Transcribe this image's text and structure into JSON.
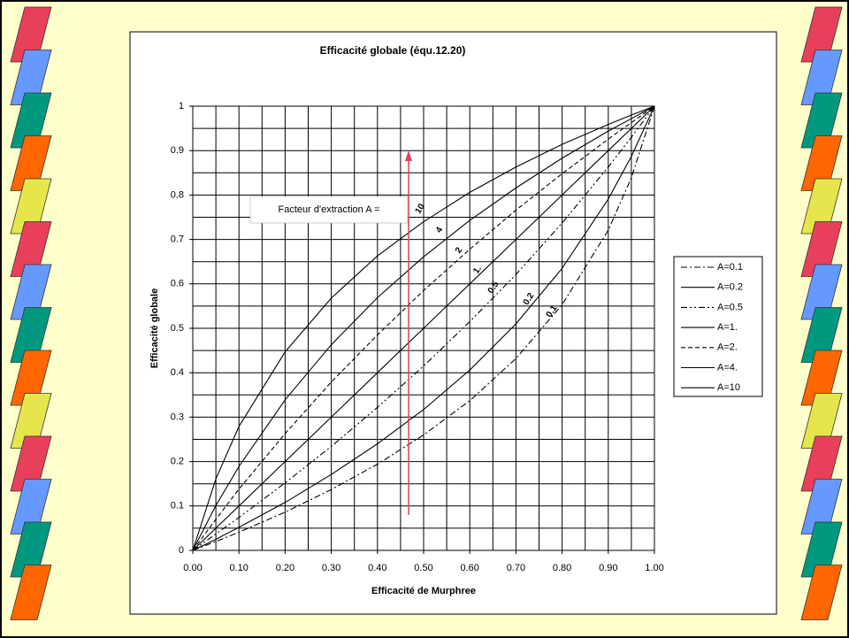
{
  "chart_data": {
    "type": "line",
    "title": "Efficacité globale (équ.12.20)",
    "x_label": "Efficacité de Murphree",
    "y_label": "Efficacité globale",
    "annotation": "Facteur d'extraction A =",
    "x": [
      0,
      0.05,
      0.1,
      0.2,
      0.3,
      0.4,
      0.5,
      0.6,
      0.7,
      0.8,
      0.9,
      0.95,
      1
    ],
    "series": [
      {
        "name": "A=0.1",
        "color": "#000000",
        "line_style": "dashdot",
        "curve_label": "0.1",
        "values": [
          0,
          0.02,
          0.041,
          0.086,
          0.137,
          0.194,
          0.26,
          0.337,
          0.432,
          0.553,
          0.721,
          0.839,
          1
        ]
      },
      {
        "name": "A=0.2",
        "color": "#000000",
        "line_style": "solid",
        "curve_label": "0.2",
        "values": [
          0,
          0.025,
          0.052,
          0.108,
          0.171,
          0.24,
          0.317,
          0.406,
          0.51,
          0.635,
          0.791,
          0.887,
          1
        ]
      },
      {
        "name": "A=0.5",
        "color": "#000000",
        "line_style": "dashdotdot",
        "curve_label": "0.5",
        "values": [
          0,
          0.037,
          0.074,
          0.152,
          0.234,
          0.322,
          0.415,
          0.515,
          0.621,
          0.737,
          0.863,
          0.93,
          1
        ]
      },
      {
        "name": "A=1.",
        "color": "#000000",
        "line_style": "solid",
        "curve_label": "1.",
        "values": [
          0,
          0.05,
          0.1,
          0.2,
          0.3,
          0.4,
          0.5,
          0.6,
          0.7,
          0.8,
          0.9,
          0.95,
          1
        ]
      },
      {
        "name": "A=2.",
        "color": "#000000",
        "line_style": "dashed",
        "curve_label": "2",
        "values": [
          0,
          0.07,
          0.138,
          0.263,
          0.379,
          0.485,
          0.585,
          0.678,
          0.766,
          0.848,
          0.926,
          0.963,
          1
        ]
      },
      {
        "name": "A=4.",
        "color": "#000000",
        "line_style": "solid",
        "curve_label": "4",
        "values": [
          0,
          0.101,
          0.189,
          0.339,
          0.463,
          0.569,
          0.661,
          0.743,
          0.816,
          0.883,
          0.944,
          0.972,
          1
        ]
      },
      {
        "name": "A=10",
        "color": "#000000",
        "line_style": "solid",
        "curve_label": "10",
        "values": [
          0,
          0.161,
          0.279,
          0.447,
          0.568,
          0.663,
          0.74,
          0.806,
          0.863,
          0.914,
          0.959,
          0.98,
          1
        ]
      }
    ],
    "xlim": [
      0,
      1
    ],
    "ylim": [
      0,
      1
    ],
    "xticks": [
      {
        "value": 0,
        "label": "0.00"
      },
      {
        "value": 0.1,
        "label": "0.10"
      },
      {
        "value": 0.2,
        "label": "0.20"
      },
      {
        "value": 0.3,
        "label": "0.30"
      },
      {
        "value": 0.4,
        "label": "0.40"
      },
      {
        "value": 0.5,
        "label": "0.50"
      },
      {
        "value": 0.6,
        "label": "0.60"
      },
      {
        "value": 0.7,
        "label": "0.70"
      },
      {
        "value": 0.8,
        "label": "0.80"
      },
      {
        "value": 0.9,
        "label": "0.90"
      },
      {
        "value": 1,
        "label": "1.00"
      }
    ],
    "yticks": [
      0,
      0.1,
      0.2,
      0.3,
      0.4,
      0.5,
      0.6,
      0.7,
      0.8,
      0.9,
      1
    ],
    "x_minor_grid": [
      0.05,
      0.15,
      0.25,
      0.35,
      0.45,
      0.55,
      0.65,
      0.75,
      0.85,
      0.95
    ],
    "y_minor_grid": [
      0.05,
      0.15,
      0.25,
      0.35,
      0.45,
      0.55,
      0.65,
      0.75,
      0.85,
      0.95
    ],
    "grid": true,
    "legend": "right",
    "arrow_color": "#e0405a"
  }
}
